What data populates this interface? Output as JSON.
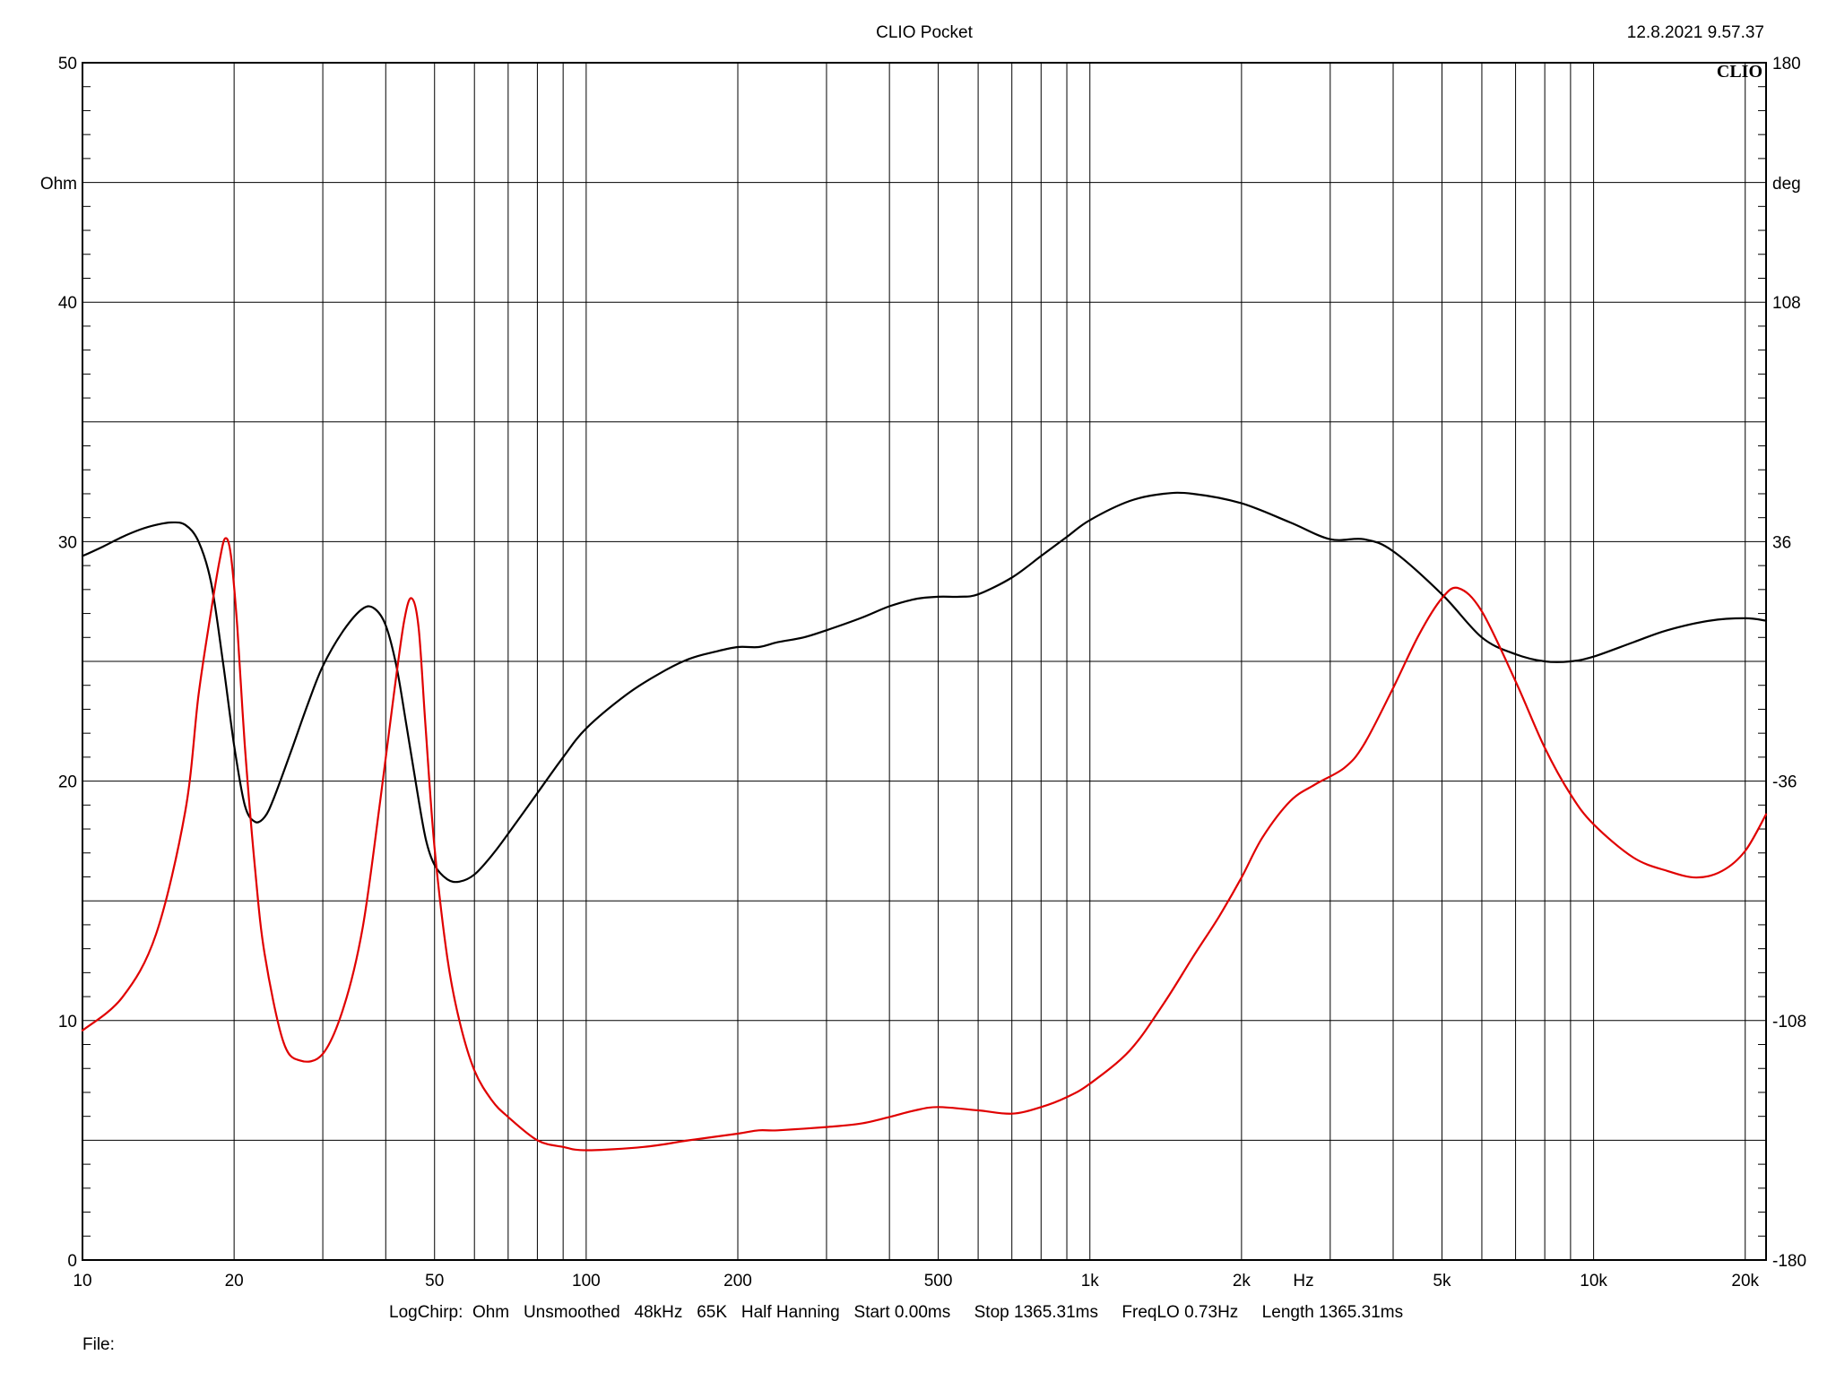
{
  "header": {
    "title": "CLIO Pocket",
    "timestamp": "12.8.2021 9.57.37",
    "logo": "CLIO"
  },
  "footer": {
    "settings": "LogChirp:  Ohm   Unsmoothed   48kHz   65K   Half Hanning   Start 0.00ms     Stop 1365.31ms     FreqLO 0.73Hz     Length 1365.31ms",
    "file_label": "File:"
  },
  "chart_data": {
    "type": "line",
    "title": "CLIO Pocket",
    "x_scale": "log",
    "xlim": [
      10,
      22000
    ],
    "xlabel": "Hz",
    "x_tick_labels": [
      {
        "value": 10,
        "label": "10"
      },
      {
        "value": 20,
        "label": "20"
      },
      {
        "value": 50,
        "label": "50"
      },
      {
        "value": 100,
        "label": "100"
      },
      {
        "value": 200,
        "label": "200"
      },
      {
        "value": 500,
        "label": "500"
      },
      {
        "value": 1000,
        "label": "1k"
      },
      {
        "value": 2000,
        "label": "2k"
      },
      {
        "value": 5000,
        "label": "5k"
      },
      {
        "value": 10000,
        "label": "10k"
      },
      {
        "value": 20000,
        "label": "20k"
      }
    ],
    "y_left": {
      "unit": "Ohm",
      "lim": [
        0,
        50
      ],
      "ticks": [
        0,
        10,
        20,
        30,
        40,
        50
      ]
    },
    "y_right": {
      "unit": "deg",
      "lim": [
        -180,
        180
      ],
      "ticks": [
        -180,
        -108,
        -36,
        36,
        108,
        180
      ]
    },
    "grid": true,
    "series": [
      {
        "axis": "left",
        "color": "#000000",
        "points": [
          [
            10,
            29.4
          ],
          [
            11,
            29.8
          ],
          [
            12,
            30.2
          ],
          [
            13,
            30.5
          ],
          [
            14,
            30.7
          ],
          [
            15,
            30.8
          ],
          [
            16,
            30.7
          ],
          [
            17,
            30.0
          ],
          [
            18,
            28.3
          ],
          [
            19,
            25.0
          ],
          [
            20,
            21.5
          ],
          [
            21,
            19.0
          ],
          [
            22,
            18.3
          ],
          [
            23,
            18.5
          ],
          [
            24,
            19.3
          ],
          [
            26,
            21.3
          ],
          [
            28,
            23.2
          ],
          [
            30,
            24.8
          ],
          [
            33,
            26.3
          ],
          [
            36,
            27.2
          ],
          [
            38,
            27.2
          ],
          [
            40,
            26.5
          ],
          [
            42,
            24.8
          ],
          [
            44,
            22.3
          ],
          [
            46,
            19.8
          ],
          [
            48,
            17.6
          ],
          [
            50,
            16.5
          ],
          [
            53,
            15.9
          ],
          [
            56,
            15.8
          ],
          [
            60,
            16.1
          ],
          [
            65,
            16.9
          ],
          [
            70,
            17.8
          ],
          [
            80,
            19.5
          ],
          [
            90,
            21.0
          ],
          [
            100,
            22.2
          ],
          [
            120,
            23.6
          ],
          [
            140,
            24.5
          ],
          [
            160,
            25.1
          ],
          [
            180,
            25.4
          ],
          [
            200,
            25.6
          ],
          [
            220,
            25.6
          ],
          [
            240,
            25.8
          ],
          [
            270,
            26.0
          ],
          [
            300,
            26.3
          ],
          [
            350,
            26.8
          ],
          [
            400,
            27.3
          ],
          [
            450,
            27.6
          ],
          [
            500,
            27.7
          ],
          [
            550,
            27.7
          ],
          [
            600,
            27.8
          ],
          [
            700,
            28.5
          ],
          [
            800,
            29.4
          ],
          [
            900,
            30.2
          ],
          [
            1000,
            30.9
          ],
          [
            1200,
            31.7
          ],
          [
            1400,
            32.0
          ],
          [
            1600,
            32.0
          ],
          [
            2000,
            31.6
          ],
          [
            2500,
            30.8
          ],
          [
            3000,
            30.1
          ],
          [
            3500,
            30.1
          ],
          [
            4000,
            29.6
          ],
          [
            5000,
            27.8
          ],
          [
            6000,
            26.0
          ],
          [
            7000,
            25.3
          ],
          [
            8000,
            25.0
          ],
          [
            9000,
            25.0
          ],
          [
            10000,
            25.2
          ],
          [
            12000,
            25.8
          ],
          [
            14000,
            26.3
          ],
          [
            17000,
            26.7
          ],
          [
            20000,
            26.8
          ],
          [
            22000,
            26.7
          ]
        ]
      },
      {
        "axis": "right",
        "color": "#e00000",
        "points": [
          [
            10,
            -111
          ],
          [
            12,
            -101
          ],
          [
            14,
            -82
          ],
          [
            16,
            -45
          ],
          [
            17,
            -10
          ],
          [
            18,
            15
          ],
          [
            18.7,
            30
          ],
          [
            19.2,
            37
          ],
          [
            19.7,
            32
          ],
          [
            20.3,
            10
          ],
          [
            21,
            -25
          ],
          [
            22,
            -62
          ],
          [
            23,
            -88
          ],
          [
            25,
            -114
          ],
          [
            27,
            -120
          ],
          [
            30,
            -118
          ],
          [
            33,
            -104
          ],
          [
            36,
            -80
          ],
          [
            39,
            -42
          ],
          [
            41.5,
            -10
          ],
          [
            43.5,
            12
          ],
          [
            45,
            19
          ],
          [
            46.5,
            10
          ],
          [
            48,
            -20
          ],
          [
            50,
            -56
          ],
          [
            53,
            -89
          ],
          [
            56,
            -108
          ],
          [
            60,
            -123
          ],
          [
            65,
            -132
          ],
          [
            70,
            -137
          ],
          [
            80,
            -144
          ],
          [
            90,
            -146
          ],
          [
            100,
            -147
          ],
          [
            130,
            -146
          ],
          [
            160,
            -144
          ],
          [
            200,
            -142
          ],
          [
            220,
            -141
          ],
          [
            240,
            -141
          ],
          [
            300,
            -140
          ],
          [
            350,
            -139
          ],
          [
            400,
            -137
          ],
          [
            450,
            -135
          ],
          [
            500,
            -134
          ],
          [
            600,
            -135
          ],
          [
            700,
            -136
          ],
          [
            800,
            -134
          ],
          [
            900,
            -131
          ],
          [
            1000,
            -127
          ],
          [
            1200,
            -117
          ],
          [
            1400,
            -103
          ],
          [
            1600,
            -89
          ],
          [
            1800,
            -77
          ],
          [
            2000,
            -65
          ],
          [
            2200,
            -53
          ],
          [
            2500,
            -42
          ],
          [
            2800,
            -37
          ],
          [
            3200,
            -32
          ],
          [
            3500,
            -25
          ],
          [
            4000,
            -8
          ],
          [
            4500,
            8
          ],
          [
            5000,
            19
          ],
          [
            5400,
            22
          ],
          [
            6000,
            15
          ],
          [
            7000,
            -6
          ],
          [
            8000,
            -26
          ],
          [
            9000,
            -40
          ],
          [
            10000,
            -49
          ],
          [
            12000,
            -59
          ],
          [
            14000,
            -63
          ],
          [
            16000,
            -65
          ],
          [
            18000,
            -63
          ],
          [
            20000,
            -57
          ],
          [
            22000,
            -46
          ]
        ]
      }
    ]
  }
}
